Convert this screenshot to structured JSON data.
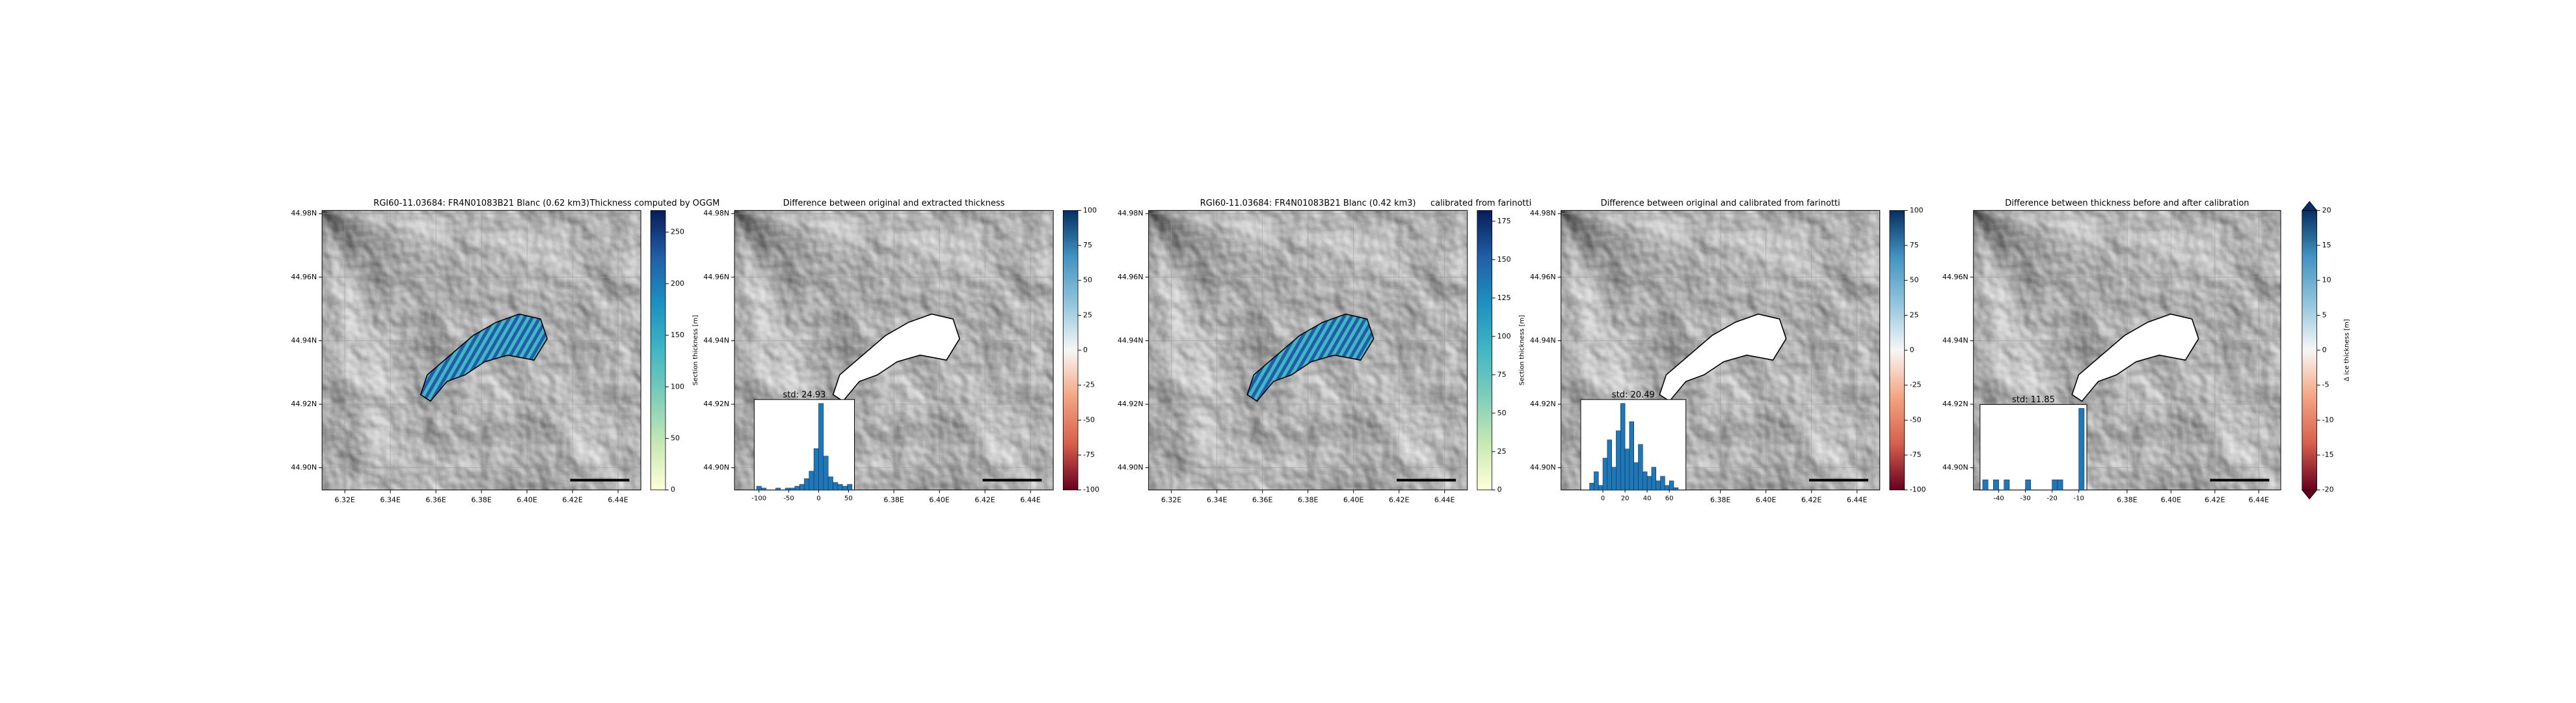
{
  "chart_data": [
    {
      "type": "map",
      "title": "RGI60-11.03684: FR4N01083B21 Blanc (0.62 km3)",
      "subtitle": "Thickness computed by OGGM",
      "xlim": [
        6.31,
        6.45
      ],
      "ylim": [
        44.893,
        44.981
      ],
      "xticks": [
        {
          "value": 6.32,
          "label": "6.32E"
        },
        {
          "value": 6.34,
          "label": "6.34E"
        },
        {
          "value": 6.36,
          "label": "6.36E"
        },
        {
          "value": 6.38,
          "label": "6.38E"
        },
        {
          "value": 6.4,
          "label": "6.40E"
        },
        {
          "value": 6.42,
          "label": "6.42E"
        },
        {
          "value": 6.44,
          "label": "6.44E"
        }
      ],
      "yticks": [
        {
          "value": 44.9,
          "label": "44.90N"
        },
        {
          "value": 44.92,
          "label": "44.92N"
        },
        {
          "value": 44.94,
          "label": "44.94N"
        },
        {
          "value": 44.96,
          "label": "44.96N"
        },
        {
          "value": 44.98,
          "label": "44.98N"
        }
      ],
      "colorbar": {
        "label": "Section thickness [m]",
        "lim": [
          0,
          271
        ],
        "ticks": [
          0,
          50,
          100,
          150,
          200,
          250
        ],
        "colors": [
          "#ffffd9",
          "#c7e9b4",
          "#7fcdbb",
          "#41b6c4",
          "#1d91c0",
          "#225ea8",
          "#081d58"
        ]
      }
    },
    {
      "type": "map",
      "title": "Difference between original and extracted thickness",
      "xlim": [
        6.31,
        6.45
      ],
      "ylim": [
        44.893,
        44.981
      ],
      "xticks": [
        {
          "value": 6.38,
          "label": "6.38E"
        },
        {
          "value": 6.4,
          "label": "6.40E"
        },
        {
          "value": 6.42,
          "label": "6.42E"
        },
        {
          "value": 6.44,
          "label": "6.44E"
        }
      ],
      "yticks": [
        {
          "value": 44.9,
          "label": "44.90N"
        },
        {
          "value": 44.92,
          "label": "44.92N"
        },
        {
          "value": 44.94,
          "label": "44.94N"
        },
        {
          "value": 44.96,
          "label": "44.96N"
        },
        {
          "value": 44.98,
          "label": "44.98N"
        }
      ],
      "colorbar": {
        "lim": [
          -100,
          100
        ],
        "ticks": [
          -100,
          -75,
          -50,
          -25,
          0,
          25,
          50,
          75,
          100
        ],
        "colors": [
          "#67001f",
          "#d6604d",
          "#f4a582",
          "#f7f7f7",
          "#92c5de",
          "#4393c3",
          "#053061"
        ]
      },
      "inset": {
        "type": "histogram",
        "title": "std: 24.93",
        "xlim": [
          -108,
          60
        ],
        "xticks": [
          -100,
          -50,
          0,
          50
        ],
        "color": "#1f77b4",
        "bins": [
          -104,
          -96,
          -88,
          -80,
          -72,
          -64,
          -56,
          -48,
          -40,
          -32,
          -24,
          -16,
          -8,
          0,
          8,
          16,
          24,
          32,
          40,
          48,
          56
        ],
        "counts": [
          2,
          1,
          0,
          0,
          1,
          0,
          1,
          1,
          2,
          3,
          6,
          10,
          22,
          46,
          18,
          7,
          4,
          3,
          2,
          3
        ]
      }
    },
    {
      "type": "map",
      "title": "RGI60-11.03684: FR4N01083B21 Blanc (0.42 km3)",
      "subtitle": "calibrated from farinotti",
      "xlim": [
        6.31,
        6.45
      ],
      "ylim": [
        44.893,
        44.981
      ],
      "xticks": [
        {
          "value": 6.32,
          "label": "6.32E"
        },
        {
          "value": 6.34,
          "label": "6.34E"
        },
        {
          "value": 6.36,
          "label": "6.36E"
        },
        {
          "value": 6.38,
          "label": "6.38E"
        },
        {
          "value": 6.4,
          "label": "6.40E"
        },
        {
          "value": 6.42,
          "label": "6.42E"
        },
        {
          "value": 6.44,
          "label": "6.44E"
        }
      ],
      "yticks": [
        {
          "value": 44.9,
          "label": "44.90N"
        },
        {
          "value": 44.92,
          "label": "44.92N"
        },
        {
          "value": 44.94,
          "label": "44.94N"
        },
        {
          "value": 44.96,
          "label": "44.96N"
        },
        {
          "value": 44.98,
          "label": "44.98N"
        }
      ],
      "colorbar": {
        "label": "Section thickness [m]",
        "lim": [
          0,
          182
        ],
        "ticks": [
          0,
          25,
          50,
          75,
          100,
          125,
          150,
          175
        ],
        "colors": [
          "#ffffd9",
          "#c7e9b4",
          "#7fcdbb",
          "#41b6c4",
          "#1d91c0",
          "#225ea8",
          "#081d58"
        ]
      }
    },
    {
      "type": "map",
      "title": "Difference between original and calibrated from farinotti",
      "xlim": [
        6.31,
        6.45
      ],
      "ylim": [
        44.893,
        44.981
      ],
      "xticks": [
        {
          "value": 6.38,
          "label": "6.38E"
        },
        {
          "value": 6.4,
          "label": "6.40E"
        },
        {
          "value": 6.42,
          "label": "6.42E"
        },
        {
          "value": 6.44,
          "label": "6.44E"
        }
      ],
      "yticks": [
        {
          "value": 44.9,
          "label": "44.90N"
        },
        {
          "value": 44.92,
          "label": "44.92N"
        },
        {
          "value": 44.94,
          "label": "44.94N"
        },
        {
          "value": 44.96,
          "label": "44.96N"
        },
        {
          "value": 44.98,
          "label": "44.98N"
        }
      ],
      "colorbar": {
        "lim": [
          -100,
          100
        ],
        "ticks": [
          -100,
          -75,
          -50,
          -25,
          0,
          25,
          50,
          75,
          100
        ],
        "colors": [
          "#67001f",
          "#d6604d",
          "#f4a582",
          "#f7f7f7",
          "#92c5de",
          "#4393c3",
          "#053061"
        ]
      },
      "inset": {
        "type": "histogram",
        "title": "std: 20.49",
        "xlim": [
          -20,
          75
        ],
        "xticks": [
          0,
          20,
          40,
          60
        ],
        "color": "#1f77b4",
        "bins": [
          -12,
          -8,
          -4,
          0,
          4,
          8,
          12,
          16,
          20,
          24,
          28,
          32,
          36,
          40,
          44,
          48,
          52,
          56,
          60,
          64,
          68
        ],
        "counts": [
          3,
          8,
          2,
          14,
          22,
          10,
          26,
          38,
          18,
          30,
          12,
          20,
          8,
          6,
          10,
          4,
          6,
          2,
          4,
          1
        ]
      }
    },
    {
      "type": "map",
      "title": "Difference between thickness before and after calibration",
      "xlim": [
        6.31,
        6.45
      ],
      "ylim": [
        44.893,
        44.981
      ],
      "xticks": [
        {
          "value": 6.38,
          "label": "6.38E"
        },
        {
          "value": 6.4,
          "label": "6.40E"
        },
        {
          "value": 6.42,
          "label": "6.42E"
        },
        {
          "value": 6.44,
          "label": "6.44E"
        }
      ],
      "yticks": [
        {
          "value": 44.9,
          "label": "44.90N"
        },
        {
          "value": 44.92,
          "label": "44.92N"
        },
        {
          "value": 44.94,
          "label": "44.94N"
        },
        {
          "value": 44.96,
          "label": "44.96N"
        }
      ],
      "colorbar": {
        "label": "Δ ice thickness [m]",
        "lim": [
          -20,
          20
        ],
        "ticks": [
          -20,
          -15,
          -10,
          -5,
          0,
          5,
          10,
          15,
          20
        ],
        "colors": [
          "#67001f",
          "#d6604d",
          "#f4a582",
          "#f7f7f7",
          "#92c5de",
          "#4393c3",
          "#053061"
        ]
      },
      "inset": {
        "type": "histogram",
        "title": "std: 11.85",
        "xlim": [
          -47,
          -7
        ],
        "xticks": [
          -40,
          -30,
          -20,
          -10
        ],
        "color": "#1f77b4",
        "bins": [
          -46,
          -44,
          -42,
          -40,
          -38,
          -36,
          -34,
          -32,
          -30,
          -28,
          -26,
          -24,
          -22,
          -20,
          -18,
          -16,
          -14,
          -12,
          -10,
          -8
        ],
        "counts": [
          3,
          0,
          3,
          0,
          3,
          0,
          0,
          0,
          3,
          0,
          0,
          0,
          0,
          3,
          3,
          0,
          0,
          0,
          24
        ]
      }
    }
  ]
}
